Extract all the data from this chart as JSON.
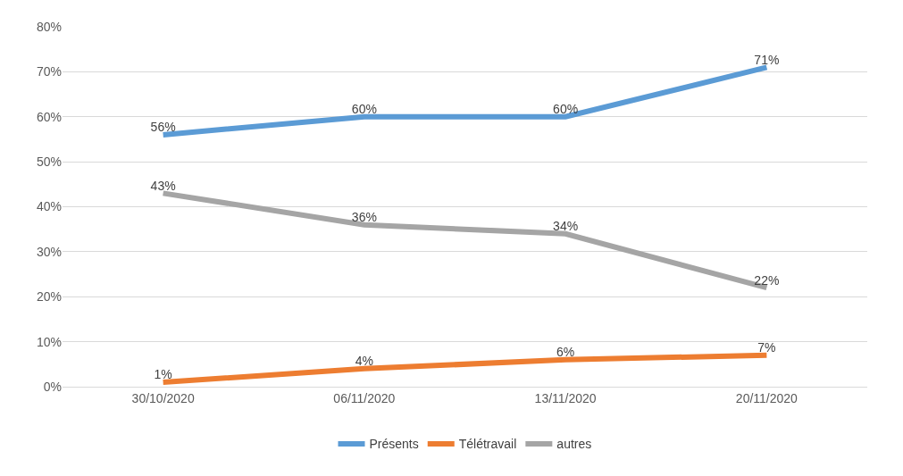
{
  "chart_data": {
    "type": "line",
    "categories": [
      "30/10/2020",
      "06/11/2020",
      "13/11/2020",
      "20/11/2020"
    ],
    "series": [
      {
        "name": "Présents",
        "color": "#5b9bd5",
        "values": [
          56,
          60,
          60,
          71
        ],
        "value_labels": [
          "56%",
          "60%",
          "60%",
          "71%"
        ]
      },
      {
        "name": "Télétravail",
        "color": "#ed7d31",
        "values": [
          1,
          4,
          6,
          7
        ],
        "value_labels": [
          "1%",
          "4%",
          "6%",
          "7%"
        ]
      },
      {
        "name": "autres",
        "color": "#a5a5a5",
        "values": [
          43,
          36,
          34,
          22
        ],
        "value_labels": [
          "43%",
          "36%",
          "34%",
          "22%"
        ]
      }
    ],
    "ylim": [
      0,
      80
    ],
    "yticks": [
      {
        "value": 0,
        "label": "0%"
      },
      {
        "value": 10,
        "label": "10%"
      },
      {
        "value": 20,
        "label": "20%"
      },
      {
        "value": 30,
        "label": "30%"
      },
      {
        "value": 40,
        "label": "40%"
      },
      {
        "value": 50,
        "label": "50%"
      },
      {
        "value": 60,
        "label": "60%"
      },
      {
        "value": 70,
        "label": "70%"
      },
      {
        "value": 80,
        "label": "80%"
      }
    ],
    "grid": "y",
    "legend": "bottom",
    "marker": "none",
    "line_style": "solid"
  }
}
